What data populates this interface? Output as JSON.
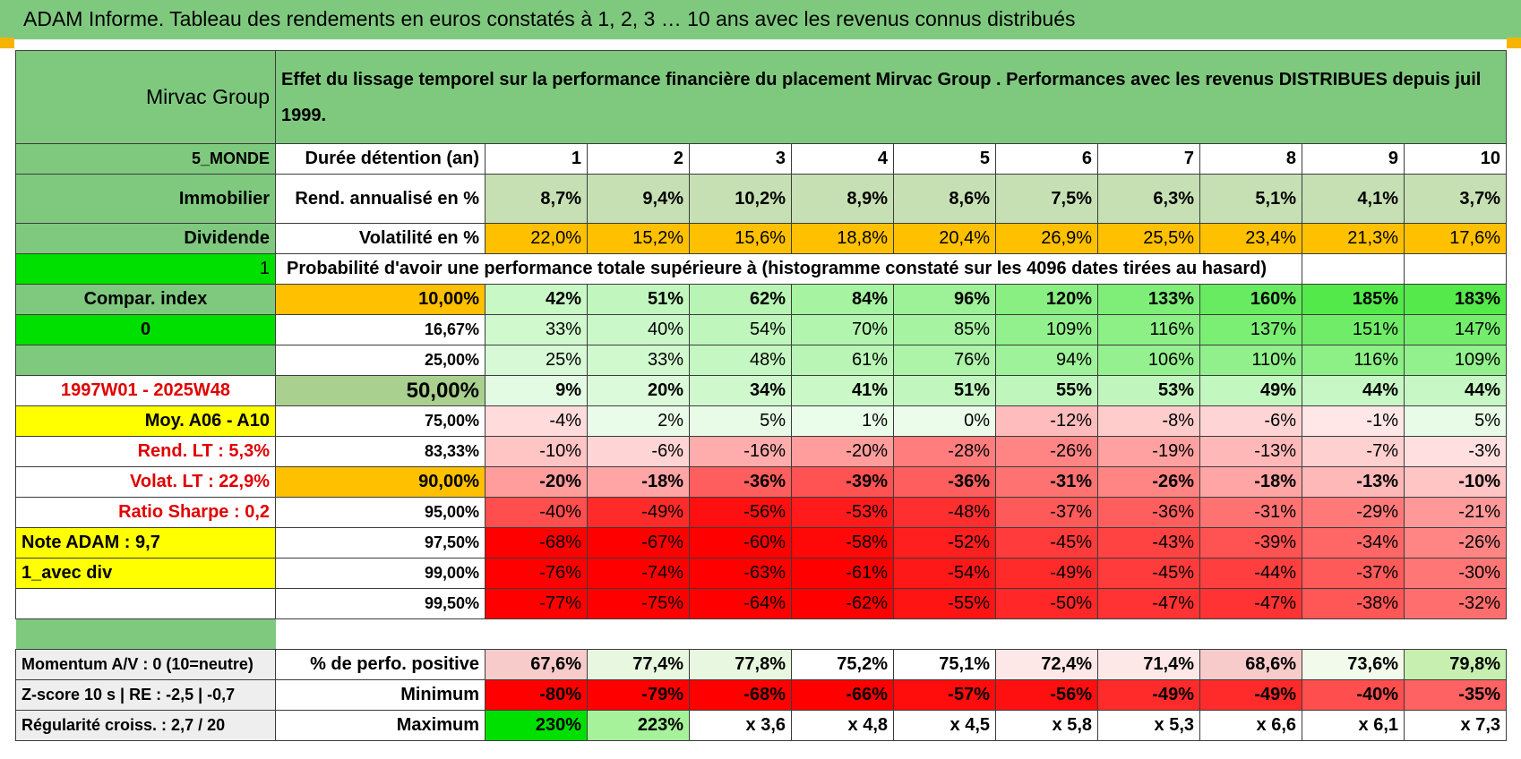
{
  "title": "ADAM Informe. Tableau des rendements en euros constatés à 1, 2, 3 … 10 ans avec les revenus connus distribués",
  "left": {
    "name": "Mirvac Group",
    "zone": "5_MONDE",
    "sector": "Immobilier",
    "type": "Dividende",
    "flag1": "1",
    "compar": "Compar. index",
    "flag0": "0",
    "period": "1997W01 - 2025W48",
    "moy": "Moy. A06 - A10",
    "rend_lt": "Rend. LT :    5,3%",
    "volat_lt": "Volat. LT :    22,9%",
    "sharpe": "Ratio Sharpe :     0,2",
    "note": "Note ADAM : 9,7",
    "avec_div": "1_avec div"
  },
  "header_text": "Effet du lissage temporel sur la performance financière du placement Mirvac Group . Performances avec les revenus DISTRIBUES depuis juil 1999.",
  "duree_label": "Durée détention (an)",
  "years": [
    "1",
    "2",
    "3",
    "4",
    "5",
    "6",
    "7",
    "8",
    "9",
    "10"
  ],
  "rend_label": "Rend. annualisé en %",
  "rend": [
    "8,7%",
    "9,4%",
    "10,2%",
    "8,9%",
    "8,6%",
    "7,5%",
    "6,3%",
    "5,1%",
    "4,1%",
    "3,7%"
  ],
  "vol_label": "Volatilité en %",
  "vol": [
    "22,0%",
    "15,2%",
    "15,6%",
    "18,8%",
    "20,4%",
    "26,9%",
    "25,5%",
    "23,4%",
    "21,3%",
    "17,6%"
  ],
  "prob_label": "Probabilité d'avoir une performance totale supérieure à (histogramme constaté sur les 4096 dates tirées au hasard)",
  "prob_rows": [
    {
      "q": "10,00%",
      "vals": [
        "42%",
        "51%",
        "62%",
        "84%",
        "96%",
        "120%",
        "133%",
        "160%",
        "185%",
        "183%"
      ]
    },
    {
      "q": "16,67%",
      "vals": [
        "33%",
        "40%",
        "54%",
        "70%",
        "85%",
        "109%",
        "116%",
        "137%",
        "151%",
        "147%"
      ]
    },
    {
      "q": "25,00%",
      "vals": [
        "25%",
        "33%",
        "48%",
        "61%",
        "76%",
        "94%",
        "106%",
        "110%",
        "116%",
        "109%"
      ]
    },
    {
      "q": "50,00%",
      "vals": [
        "9%",
        "20%",
        "34%",
        "41%",
        "51%",
        "55%",
        "53%",
        "49%",
        "44%",
        "44%"
      ]
    },
    {
      "q": "75,00%",
      "vals": [
        "-4%",
        "2%",
        "5%",
        "1%",
        "0%",
        "-12%",
        "-8%",
        "-6%",
        "-1%",
        "5%"
      ]
    },
    {
      "q": "83,33%",
      "vals": [
        "-10%",
        "-6%",
        "-16%",
        "-20%",
        "-28%",
        "-26%",
        "-19%",
        "-13%",
        "-7%",
        "-3%"
      ]
    },
    {
      "q": "90,00%",
      "vals": [
        "-20%",
        "-18%",
        "-36%",
        "-39%",
        "-36%",
        "-31%",
        "-26%",
        "-18%",
        "-13%",
        "-10%"
      ]
    },
    {
      "q": "95,00%",
      "vals": [
        "-40%",
        "-49%",
        "-56%",
        "-53%",
        "-48%",
        "-37%",
        "-36%",
        "-31%",
        "-29%",
        "-21%"
      ]
    },
    {
      "q": "97,50%",
      "vals": [
        "-68%",
        "-67%",
        "-60%",
        "-58%",
        "-52%",
        "-45%",
        "-43%",
        "-39%",
        "-34%",
        "-26%"
      ]
    },
    {
      "q": "99,00%",
      "vals": [
        "-76%",
        "-74%",
        "-63%",
        "-61%",
        "-54%",
        "-49%",
        "-45%",
        "-44%",
        "-37%",
        "-30%"
      ]
    },
    {
      "q": "99,50%",
      "vals": [
        "-77%",
        "-75%",
        "-64%",
        "-62%",
        "-55%",
        "-50%",
        "-47%",
        "-47%",
        "-38%",
        "-32%"
      ]
    }
  ],
  "bottom": {
    "momentum": "Momentum A/V : 0 (10=neutre)",
    "zscore": "Z-score 10 s | RE : -2,5 | -0,7",
    "regul": "Régularité croiss. : 2,7 / 20",
    "pos_label": "% de perfo. positive",
    "pos": [
      "67,6%",
      "77,4%",
      "77,8%",
      "75,2%",
      "75,1%",
      "72,4%",
      "71,4%",
      "68,6%",
      "73,6%",
      "79,8%"
    ],
    "min_label": "Minimum",
    "min": [
      "-80%",
      "-79%",
      "-68%",
      "-66%",
      "-57%",
      "-56%",
      "-49%",
      "-49%",
      "-40%",
      "-35%"
    ],
    "max_label": "Maximum",
    "max": [
      "230%",
      "223%",
      "x 3,6",
      "x 4,8",
      "x 4,5",
      "x 5,8",
      "x 5,3",
      "x 6,6",
      "x 6,1",
      "x 7,3"
    ]
  },
  "colors": {
    "green_header": "#7fc97f",
    "bright_green": "#00e000",
    "yellow": "#ffff00",
    "orange": "#ffc000",
    "red_text": "#e00000"
  }
}
